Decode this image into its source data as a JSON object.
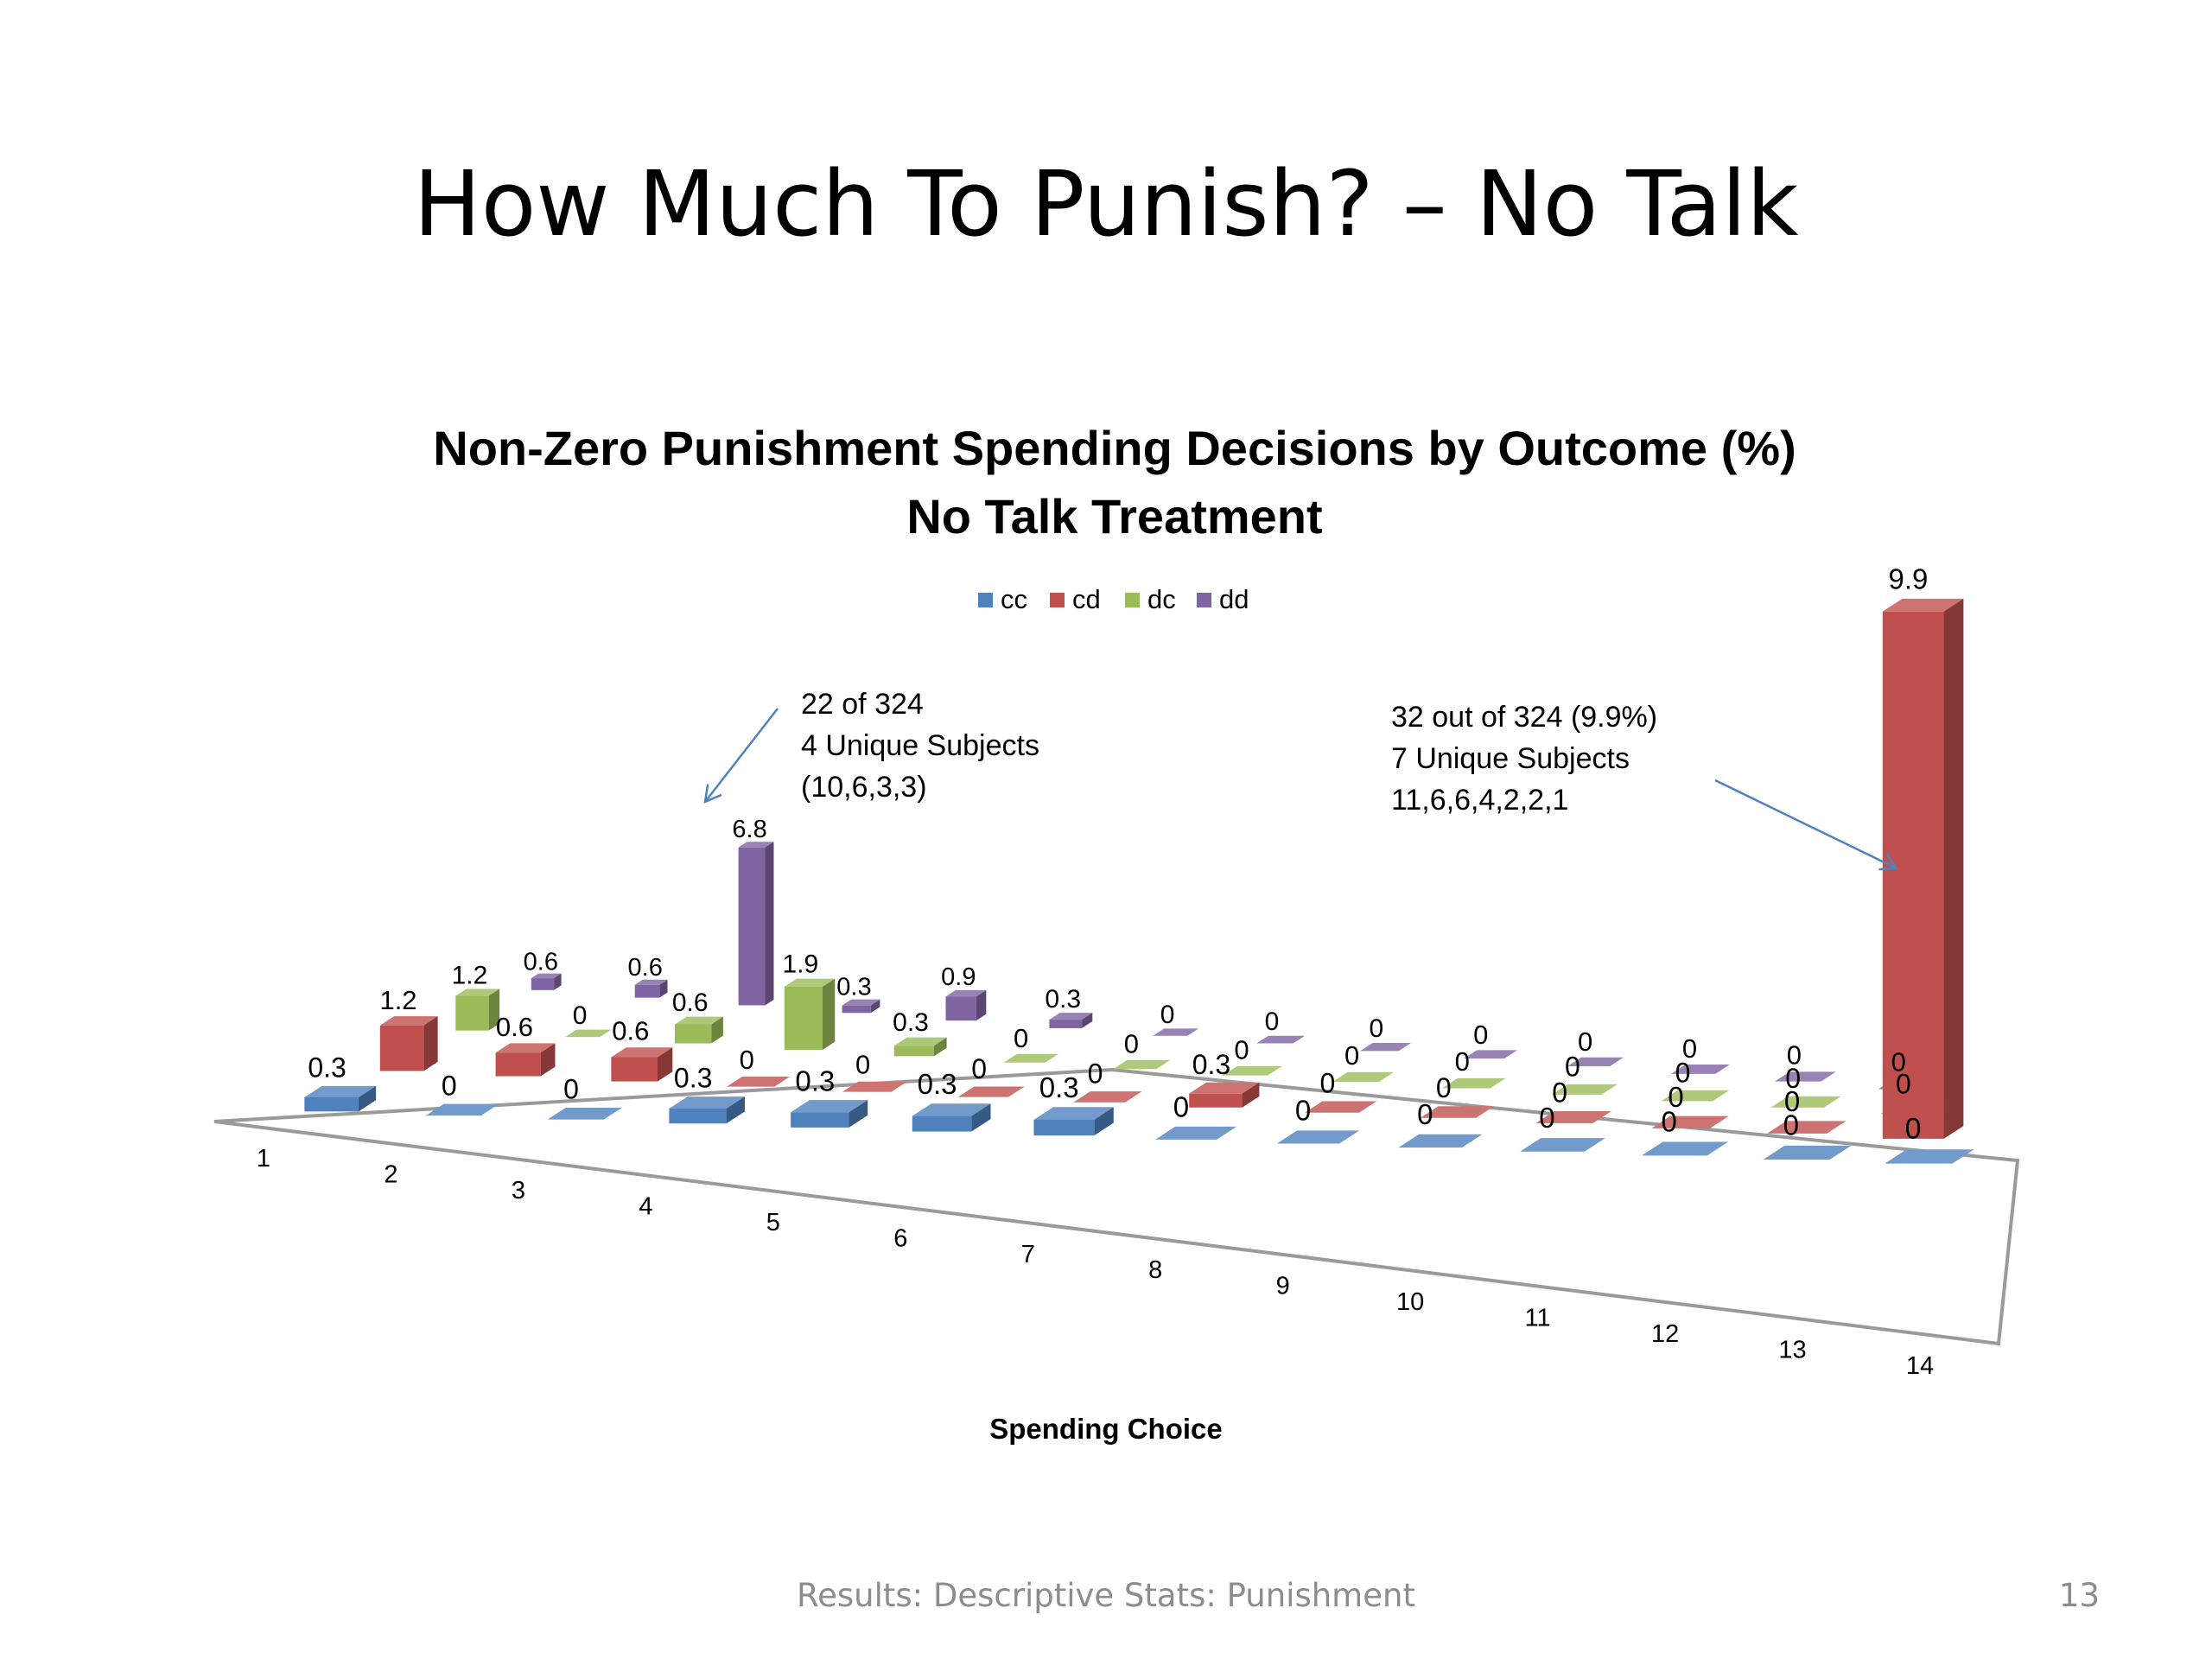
{
  "slide": {
    "title": "How Much To Punish? – No Talk",
    "footer": "Results: Descriptive Stats: Punishment",
    "page_number": "13"
  },
  "chart_data": {
    "type": "bar",
    "style": "3d-clustered",
    "title": "Non-Zero Punishment Spending Decisions by Outcome (%)",
    "subtitle": "No Talk Treatment",
    "xlabel": "Spending Choice",
    "legend_position": "top",
    "categories": [
      "1",
      "2",
      "3",
      "4",
      "5",
      "6",
      "7",
      "8",
      "9",
      "10",
      "11",
      "12",
      "13",
      "14"
    ],
    "series": [
      {
        "name": "cc",
        "color": "#4f81bd",
        "values": [
          0.3,
          0,
          0,
          0.3,
          0.3,
          0.3,
          0.3,
          0,
          0,
          0,
          0,
          0,
          0,
          0
        ]
      },
      {
        "name": "cd",
        "color": "#c0504d",
        "values": [
          1.2,
          0.6,
          0.6,
          0,
          0,
          0,
          0,
          0.3,
          0,
          0,
          0,
          0,
          0,
          9.9
        ]
      },
      {
        "name": "dc",
        "color": "#9bbb59",
        "values": [
          1.2,
          0,
          0.6,
          1.9,
          0.3,
          0,
          0,
          0,
          0,
          0,
          0,
          0,
          0,
          0
        ]
      },
      {
        "name": "dd",
        "color": "#8064a2",
        "values": [
          0.6,
          0.6,
          6.8,
          0.3,
          0.9,
          0.3,
          0,
          0,
          0,
          0,
          0,
          0,
          0,
          0
        ]
      }
    ],
    "annotations": [
      {
        "lines": [
          "22 of 324",
          "4 Unique Subjects",
          "(10,6,3,3)"
        ],
        "target": {
          "series": "dd",
          "category": "3"
        }
      },
      {
        "lines": [
          "32 out of 324 (9.9%)",
          "7 Unique Subjects",
          "11,6,6,4,2,2,1"
        ],
        "target": {
          "series": "cd",
          "category": "14"
        }
      }
    ]
  }
}
